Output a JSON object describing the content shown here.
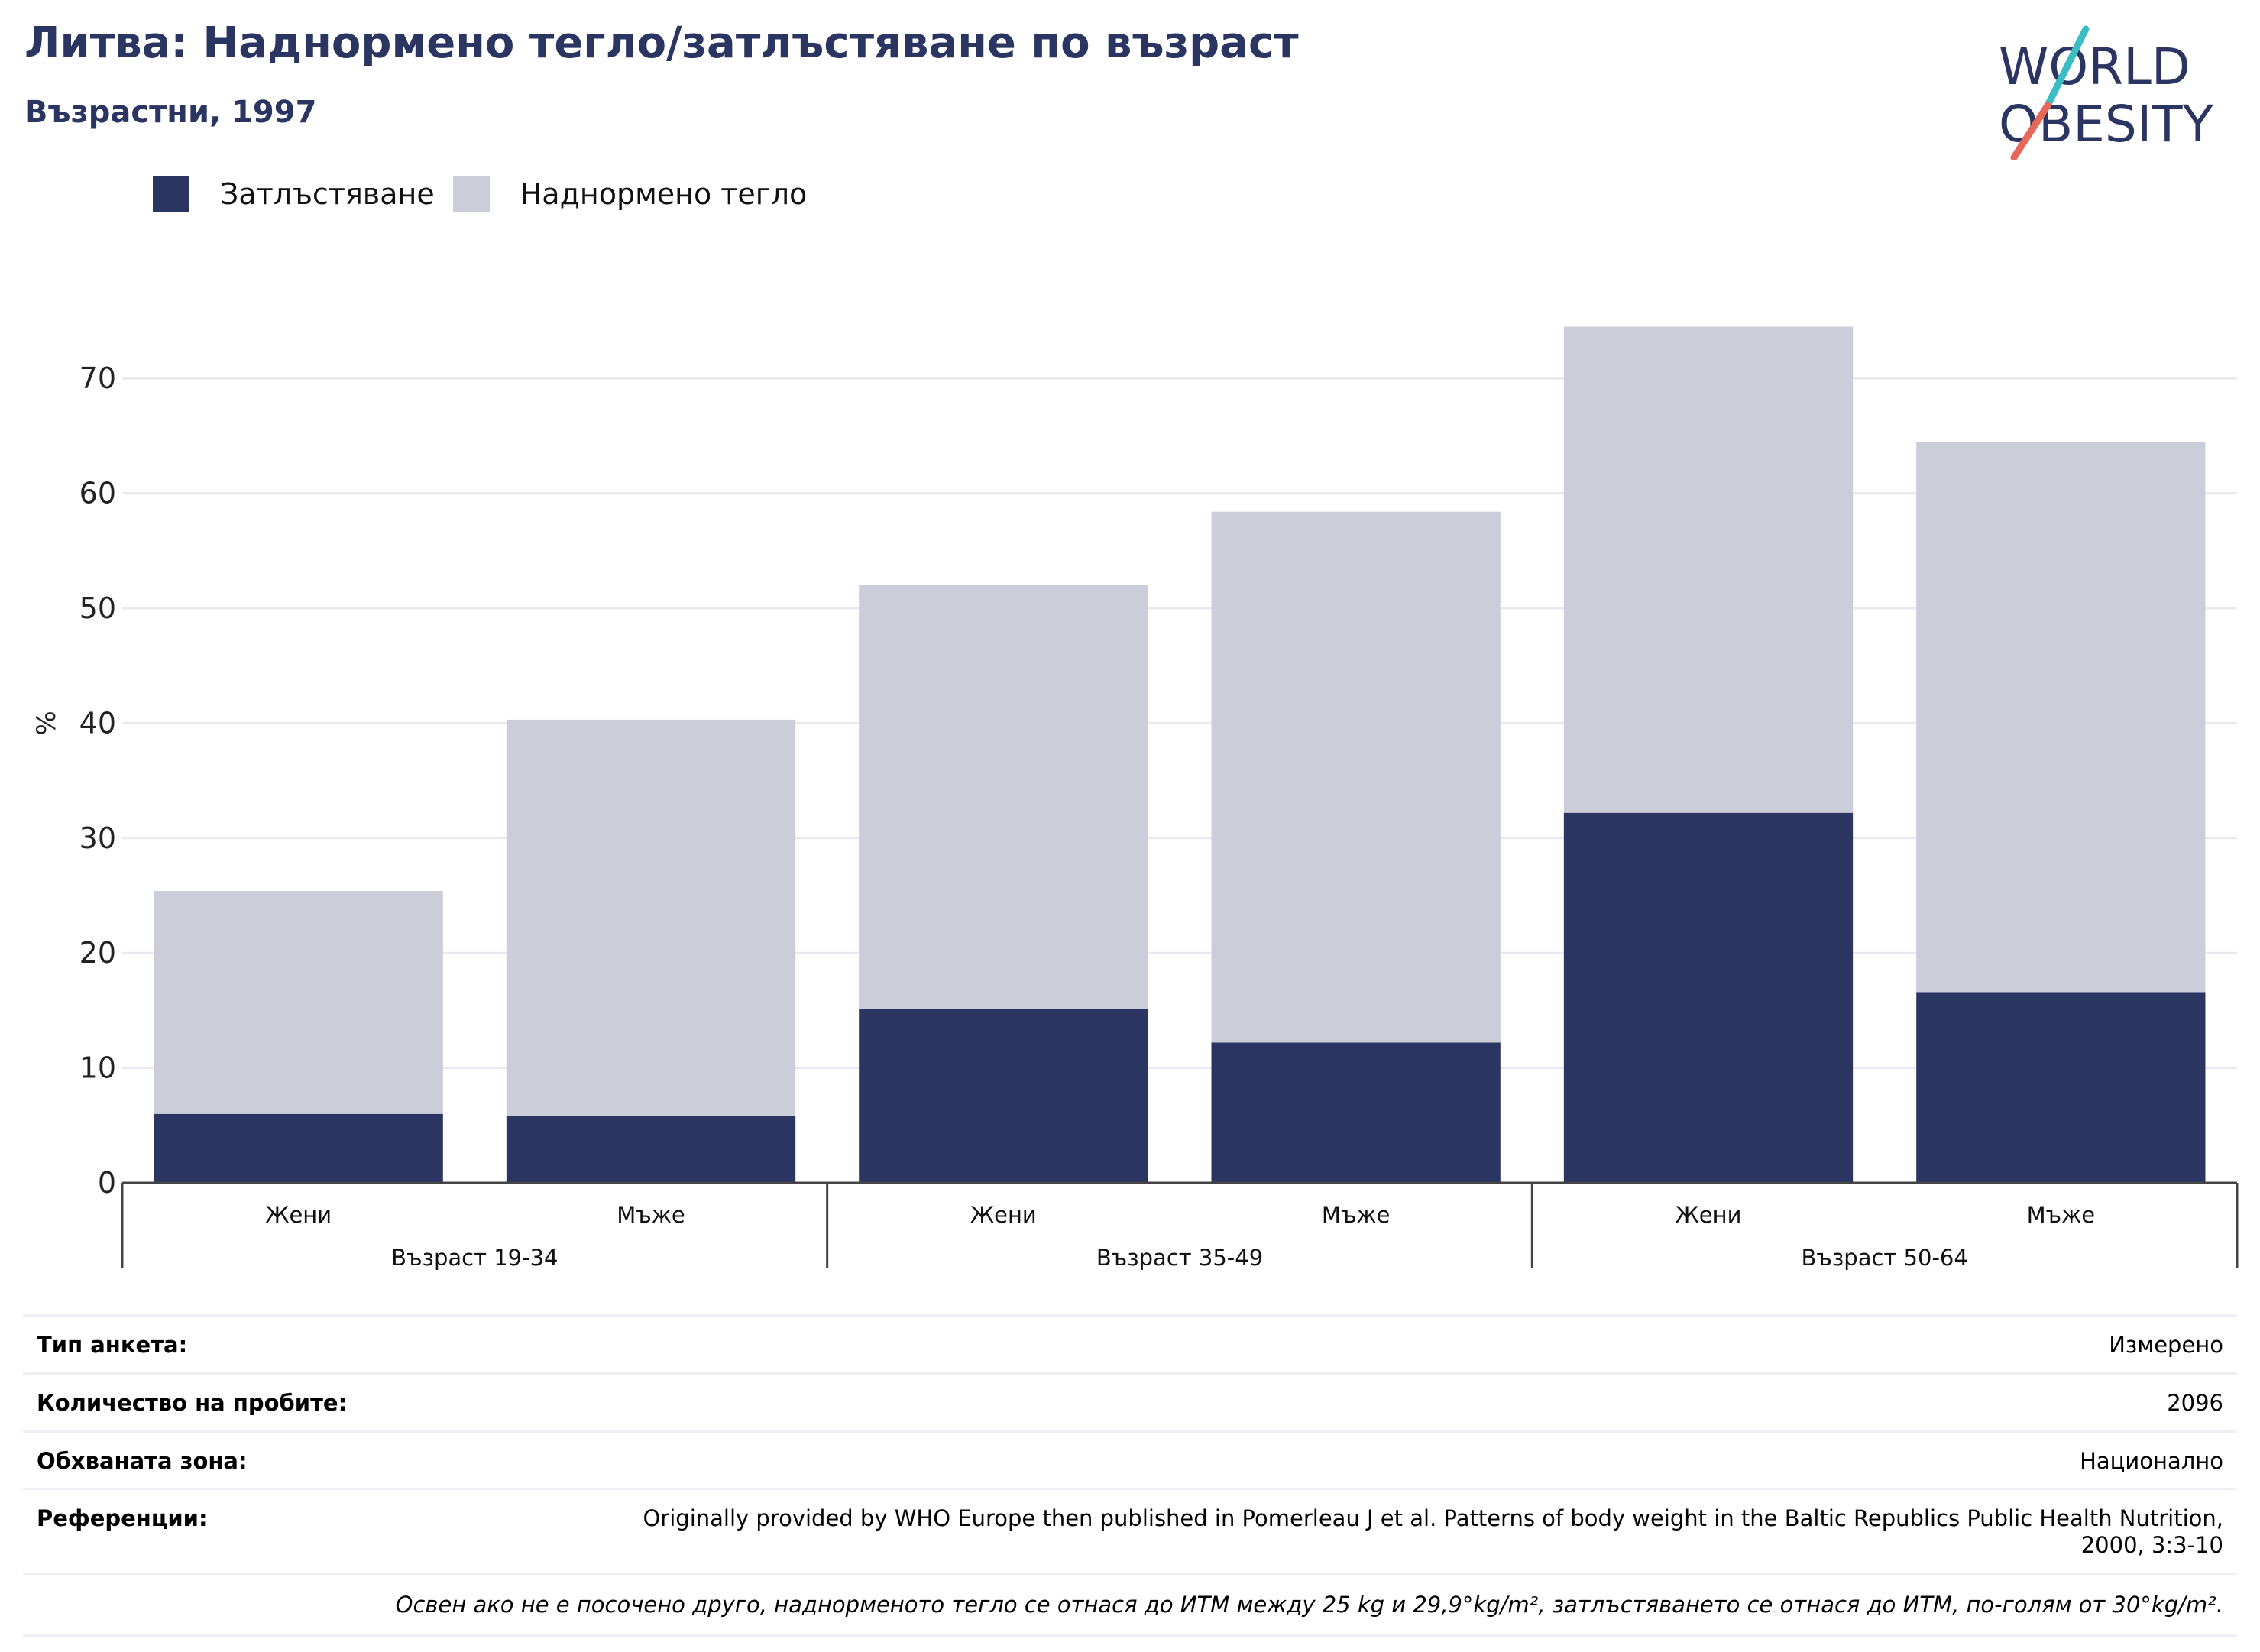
{
  "header": {
    "title": "Литва: Наднормено тегло/затлъстяване по възраст",
    "subtitle": "Възрастни, 1997"
  },
  "logo": {
    "line1": "WORLD",
    "line2": "OBESITY",
    "accent1": "#3cbcc3",
    "accent2": "#e5685a"
  },
  "colors": {
    "obesity": "#2b3562",
    "overweight": "#cbcdd9",
    "grid": "#e8eaf0",
    "axis": "#444444"
  },
  "chart_data": {
    "type": "bar",
    "stacked": true,
    "ylabel": "%",
    "ylim": [
      0,
      75
    ],
    "yticks": [
      0,
      10,
      20,
      30,
      40,
      50,
      60,
      70
    ],
    "grid": true,
    "legend_position": "top-left",
    "groups": [
      {
        "label": "Възраст 19-34",
        "categories": [
          "Жени",
          "Мъже"
        ]
      },
      {
        "label": "Възраст 35-49",
        "categories": [
          "Жени",
          "Мъже"
        ]
      },
      {
        "label": "Възраст 50-64",
        "categories": [
          "Жени",
          "Мъже"
        ]
      }
    ],
    "categories": [
      "Жени",
      "Мъже",
      "Жени",
      "Мъже",
      "Жени",
      "Мъже"
    ],
    "series": [
      {
        "name": "Затлъстяване",
        "values": [
          6.0,
          5.8,
          15.1,
          12.2,
          32.2,
          16.6
        ]
      },
      {
        "name": "Наднормено тегло",
        "values": [
          19.4,
          34.5,
          36.9,
          46.2,
          42.3,
          47.9
        ]
      }
    ]
  },
  "info": {
    "rows": [
      {
        "label": "Тип анкета:",
        "value": "Измерено"
      },
      {
        "label": "Количество на пробите:",
        "value": "2096"
      },
      {
        "label": "Обхваната зона:",
        "value": "Национално"
      },
      {
        "label": "Референции:",
        "value": "Originally provided by WHO Europe then published in Pomerleau J et al. Patterns of body weight in the Baltic Republics Public Health Nutrition, 2000, 3:3-10"
      }
    ],
    "note": "Освен ако не е посочено друго, наднорменото тегло се отнася до ИТМ между 25 kg и 29,9°kg/m², затлъстяването се отнася до ИТМ, по-голям от 30°kg/m²."
  }
}
